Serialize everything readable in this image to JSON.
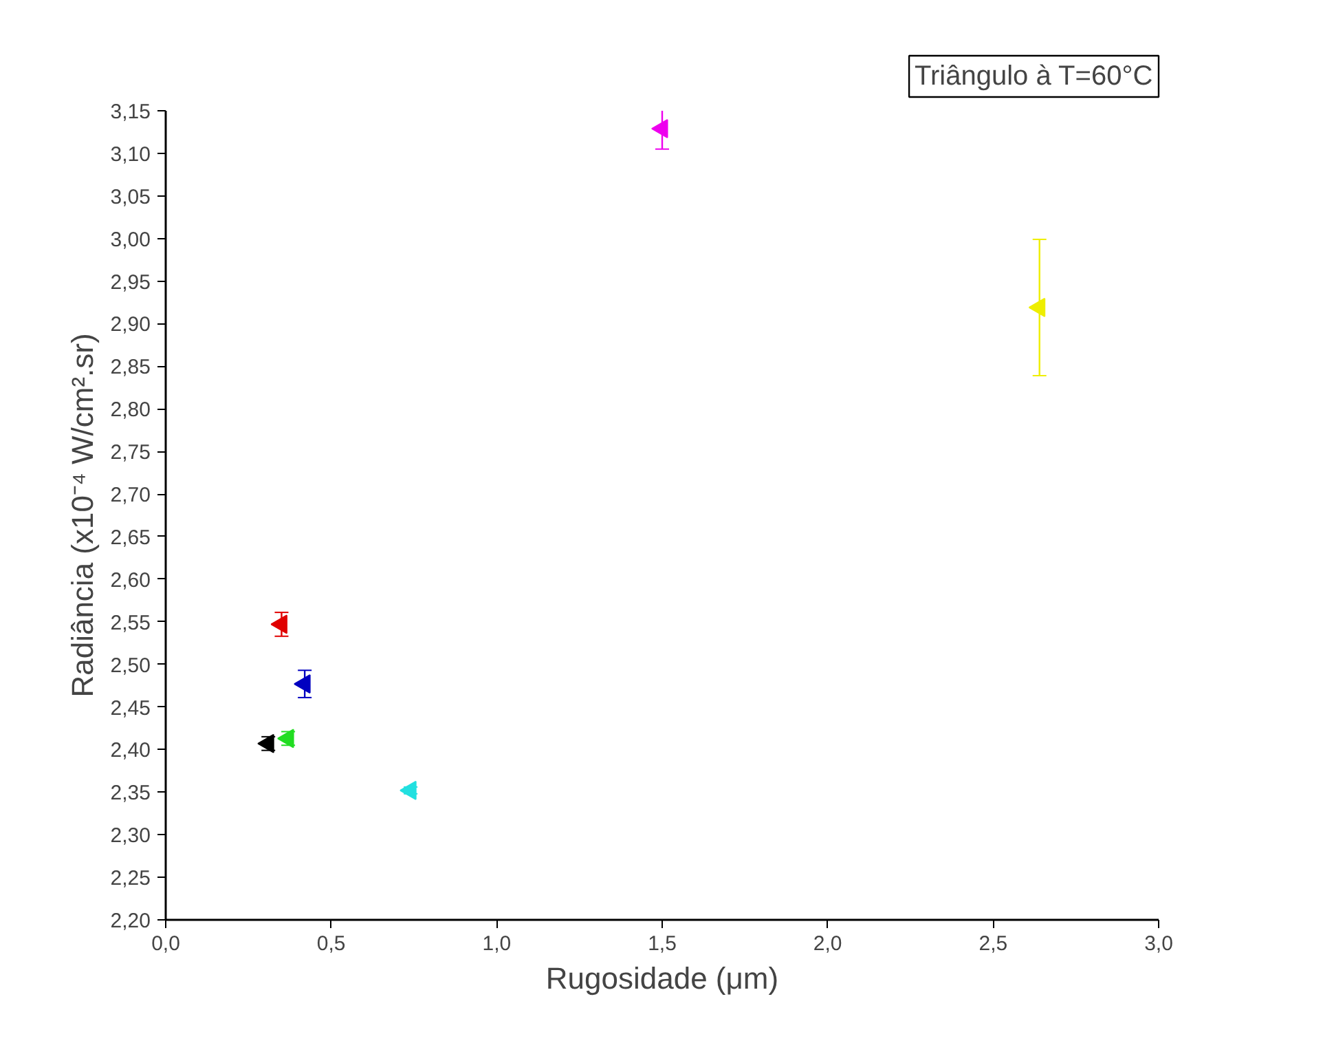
{
  "chart_data": {
    "type": "scatter",
    "title": "Triângulo à T=60°C",
    "xlabel": "Rugosidade (μm)",
    "ylabel": "Radiância (x10⁻⁴ W/cm².sr)",
    "xlim": [
      0,
      3.0
    ],
    "ylim": [
      2.2,
      3.15
    ],
    "xticks": [
      {
        "value": 0,
        "label": "0,0"
      },
      {
        "value": 0.5,
        "label": "0,5"
      },
      {
        "value": 1.0,
        "label": "1,0"
      },
      {
        "value": 1.5,
        "label": "1,5"
      },
      {
        "value": 2.0,
        "label": "2,0"
      },
      {
        "value": 2.5,
        "label": "2,5"
      },
      {
        "value": 3.0,
        "label": "3,0"
      }
    ],
    "yticks": [
      {
        "value": 2.2,
        "label": "2,20"
      },
      {
        "value": 2.25,
        "label": "2,25"
      },
      {
        "value": 2.3,
        "label": "2,30"
      },
      {
        "value": 2.35,
        "label": "2,35"
      },
      {
        "value": 2.4,
        "label": "2,40"
      },
      {
        "value": 2.45,
        "label": "2,45"
      },
      {
        "value": 2.5,
        "label": "2,50"
      },
      {
        "value": 2.55,
        "label": "2,55"
      },
      {
        "value": 2.6,
        "label": "2,60"
      },
      {
        "value": 2.65,
        "label": "2,65"
      },
      {
        "value": 2.7,
        "label": "2,70"
      },
      {
        "value": 2.75,
        "label": "2,75"
      },
      {
        "value": 2.8,
        "label": "2,80"
      },
      {
        "value": 2.85,
        "label": "2,85"
      },
      {
        "value": 2.9,
        "label": "2,90"
      },
      {
        "value": 2.95,
        "label": "2,95"
      },
      {
        "value": 3.0,
        "label": "3,00"
      },
      {
        "value": 3.05,
        "label": "3,05"
      },
      {
        "value": 3.1,
        "label": "3,10"
      },
      {
        "value": 3.15,
        "label": "3,15"
      }
    ],
    "grid": false,
    "marker": "triangle",
    "series": [
      {
        "color": "#000000",
        "x": [
          0.31
        ],
        "values": [
          2.407
        ],
        "errors": [
          0.008
        ]
      },
      {
        "color": "#e00000",
        "x": [
          0.35
        ],
        "values": [
          2.547
        ],
        "errors": [
          0.014
        ]
      },
      {
        "color": "#22dd22",
        "x": [
          0.37
        ],
        "values": [
          2.413
        ],
        "errors": [
          0.008
        ]
      },
      {
        "color": "#0000c0",
        "x": [
          0.42
        ],
        "values": [
          2.477
        ],
        "errors": [
          0.016
        ]
      },
      {
        "color": "#22e0e0",
        "x": [
          0.74
        ],
        "values": [
          2.352
        ],
        "errors": [
          0.004
        ]
      },
      {
        "color": "#ee00ee",
        "x": [
          1.5
        ],
        "values": [
          3.129
        ],
        "errors": [
          0.024
        ]
      },
      {
        "color": "#eeee00",
        "x": [
          2.64
        ],
        "values": [
          2.919
        ],
        "errors": [
          0.08
        ]
      }
    ]
  }
}
